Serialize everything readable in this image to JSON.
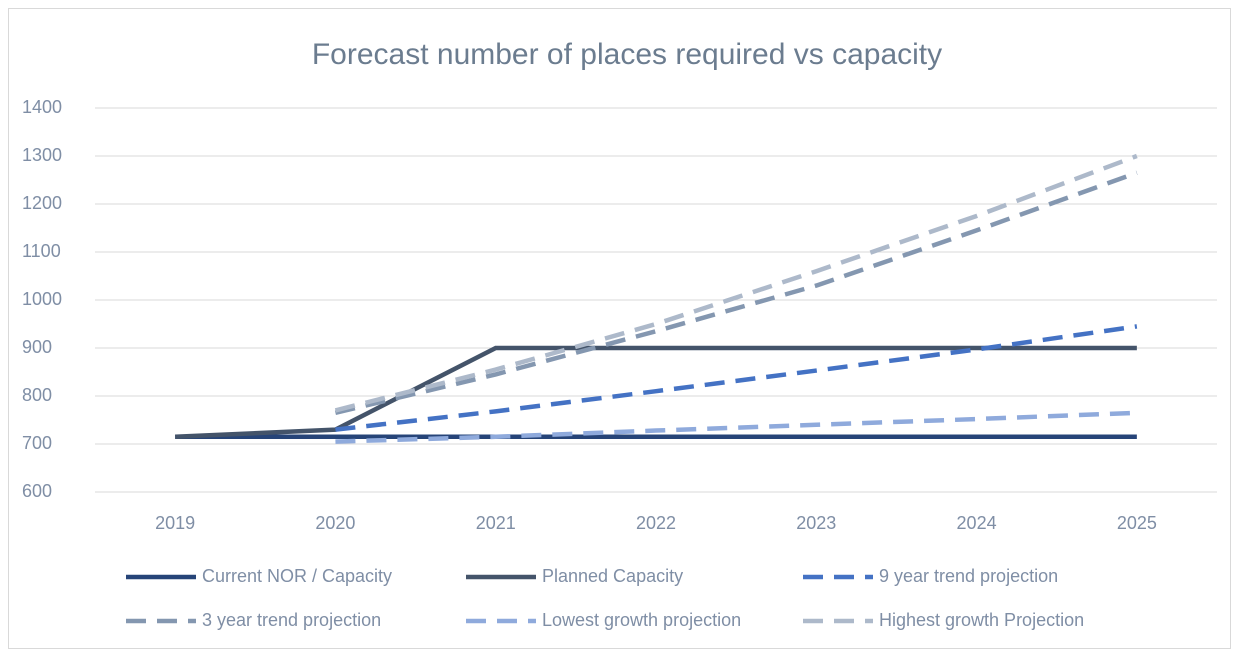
{
  "chart_data": {
    "type": "line",
    "title": "Forecast number of places required vs capacity",
    "categories": [
      "2019",
      "2020",
      "2021",
      "2022",
      "2023",
      "2024",
      "2025"
    ],
    "ylim": [
      600,
      1400
    ],
    "yticks": [
      600,
      700,
      800,
      900,
      1000,
      1100,
      1200,
      1300,
      1400
    ],
    "grid": true,
    "legend": "bottom",
    "series": [
      {
        "name": "Current NOR / Capacity",
        "color": "#264478",
        "dashed": false,
        "values": [
          715,
          715,
          715,
          715,
          715,
          715,
          715
        ]
      },
      {
        "name": "Planned Capacity",
        "color": "#44546a",
        "dashed": false,
        "values": [
          715,
          730,
          900,
          900,
          900,
          900,
          900
        ]
      },
      {
        "name": "9 year trend projection",
        "color": "#4472c4",
        "dashed": true,
        "values": [
          null,
          730,
          768,
          810,
          853,
          897,
          945
        ]
      },
      {
        "name": "3 year trend projection",
        "color": "#8497b0",
        "dashed": true,
        "values": [
          null,
          765,
          845,
          935,
          1030,
          1145,
          1265
        ]
      },
      {
        "name": "Lowest growth projection",
        "color": "#8faadc",
        "dashed": true,
        "values": [
          null,
          705,
          715,
          728,
          740,
          752,
          765
        ]
      },
      {
        "name": "Highest growth Projection",
        "color": "#adb9ca",
        "dashed": true,
        "values": [
          null,
          770,
          855,
          950,
          1060,
          1175,
          1300
        ]
      }
    ]
  }
}
